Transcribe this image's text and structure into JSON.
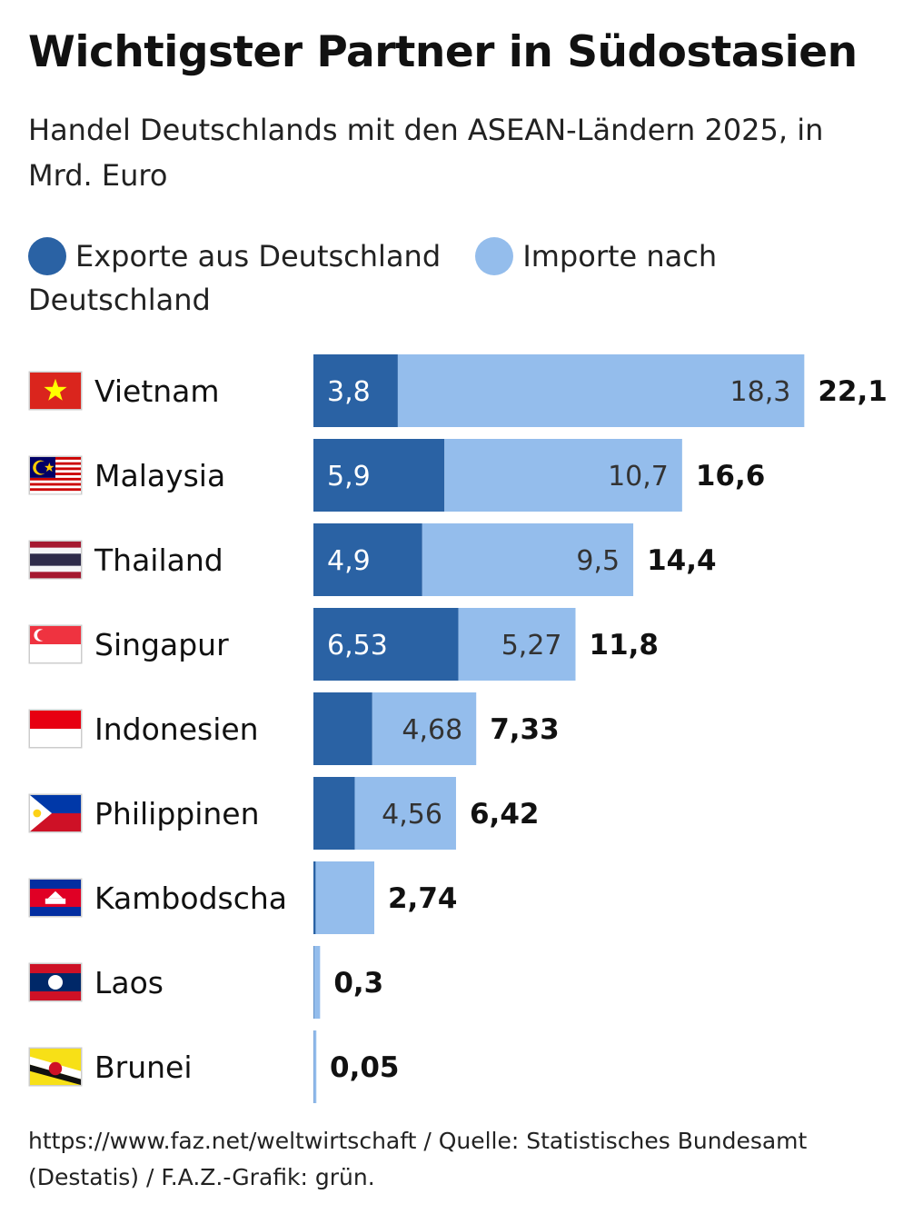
{
  "title": "Wichtigster Partner in Südostasien",
  "subtitle": "Handel Deutschlands mit den ASEAN-Ländern 2025, in Mrd. Euro",
  "legend": {
    "exports_label": "Exporte aus Deutschland",
    "imports_label": "Importe nach Deutschland"
  },
  "colors": {
    "exports": "#2A62A4",
    "imports": "#94BDEC",
    "export_text": "#FFFFFF",
    "import_text": "#333333",
    "total_text": "#111111"
  },
  "footer": "https://www.faz.net/weltwirtschaft / Quelle: Statistisches Bundesamt (Destatis) / F.A.Z.-Grafik: grün.",
  "chart_data": {
    "type": "bar",
    "orientation": "horizontal",
    "stacked": true,
    "title": "Wichtigster Partner in Südostasien",
    "xlim": [
      0,
      22.1
    ],
    "grid": false,
    "legend_position": "top",
    "categories": [
      "Vietnam",
      "Malaysia",
      "Thailand",
      "Singapur",
      "Indonesien",
      "Philippinen",
      "Kambodscha",
      "Laos",
      "Brunei"
    ],
    "flags": [
      "vietnam-flag-icon",
      "malaysia-flag-icon",
      "thailand-flag-icon",
      "singapore-flag-icon",
      "indonesia-flag-icon",
      "philippines-flag-icon",
      "cambodia-flag-icon",
      "laos-flag-icon",
      "brunei-flag-icon"
    ],
    "series": [
      {
        "name": "Exporte aus Deutschland",
        "values": [
          3.8,
          5.9,
          4.9,
          6.53,
          2.65,
          1.86,
          0.1,
          0.02,
          0.01
        ],
        "labels": [
          "3,8",
          "5,9",
          "4,9",
          "6,53",
          "",
          "",
          "",
          "",
          ""
        ]
      },
      {
        "name": "Importe nach Deutschland",
        "values": [
          18.3,
          10.7,
          9.5,
          5.27,
          4.68,
          4.56,
          2.64,
          0.28,
          0.04
        ],
        "labels": [
          "18,3",
          "10,7",
          "9,5",
          "5,27",
          "4,68",
          "4,56",
          "",
          "",
          ""
        ]
      }
    ],
    "totals": [
      22.1,
      16.6,
      14.4,
      11.8,
      7.33,
      6.42,
      2.74,
      0.3,
      0.05
    ],
    "total_labels": [
      "22,1",
      "16,6",
      "14,4",
      "11,8",
      "7,33",
      "6,42",
      "2,74",
      "0,3",
      "0,05"
    ]
  }
}
